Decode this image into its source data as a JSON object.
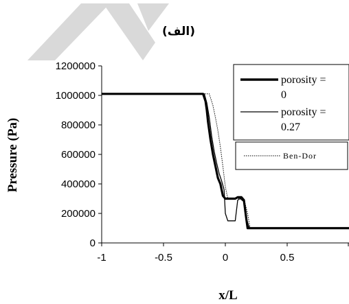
{
  "chart_data": {
    "type": "line",
    "label": "(الف)",
    "xlabel": "x/L",
    "ylabel": "Pressure (Pa)",
    "xlim": [
      -1,
      1
    ],
    "ylim": [
      0,
      1200000
    ],
    "xticks": [
      "-1",
      "-0.5",
      "0",
      "0.5"
    ],
    "yticks": [
      "0",
      "200000",
      "400000",
      "600000",
      "800000",
      "1000000",
      "1200000"
    ],
    "grid": false,
    "legend_placement": "top-right",
    "series": [
      {
        "name": "porosity = 0",
        "style": "thick-solid",
        "x": [
          -1.0,
          -0.18,
          -0.16,
          -0.15,
          -0.14,
          -0.12,
          -0.1,
          -0.08,
          -0.06,
          -0.04,
          -0.02,
          0.0,
          0.02,
          0.05,
          0.08,
          0.1,
          0.13,
          0.15,
          0.17,
          0.18,
          0.2,
          0.25,
          0.5,
          1.0
        ],
        "y": [
          1010000,
          1010000,
          960000,
          900000,
          820000,
          700000,
          600000,
          520000,
          440000,
          400000,
          320000,
          300000,
          300000,
          300000,
          300000,
          310000,
          310000,
          290000,
          160000,
          100000,
          100000,
          100000,
          100000,
          100000
        ]
      },
      {
        "name": "porosity = 0.27",
        "style": "thin-solid",
        "x": [
          -1.0,
          -0.17,
          -0.15,
          -0.13,
          -0.11,
          -0.09,
          -0.07,
          -0.05,
          -0.03,
          -0.01,
          0.0,
          0.02,
          0.05,
          0.08,
          0.1,
          0.12,
          0.15,
          0.17,
          0.19,
          0.21,
          0.25,
          0.5,
          1.0
        ],
        "y": [
          1010000,
          1010000,
          950000,
          850000,
          720000,
          620000,
          540000,
          470000,
          420000,
          360000,
          200000,
          150000,
          150000,
          150000,
          290000,
          300000,
          280000,
          170000,
          110000,
          100000,
          100000,
          100000,
          100000
        ]
      },
      {
        "name": "Ben-Dor",
        "style": "dotted",
        "x": [
          -1.0,
          -0.13,
          -0.1,
          -0.08,
          -0.06,
          -0.04,
          -0.02,
          0.0,
          0.02,
          0.05,
          0.1,
          0.15,
          0.18,
          0.2,
          0.25,
          0.5,
          1.0
        ],
        "y": [
          1010000,
          1010000,
          930000,
          850000,
          760000,
          650000,
          520000,
          380000,
          300000,
          300000,
          300000,
          300000,
          200000,
          100000,
          100000,
          100000,
          100000
        ]
      }
    ]
  },
  "legend": {
    "entry1_line1": "porosity =",
    "entry1_line2": "0",
    "entry2_line1": "porosity =",
    "entry2_line2": "0.27",
    "entry3": "Ben-Dor"
  },
  "watermark_color": "#d9d9d9"
}
